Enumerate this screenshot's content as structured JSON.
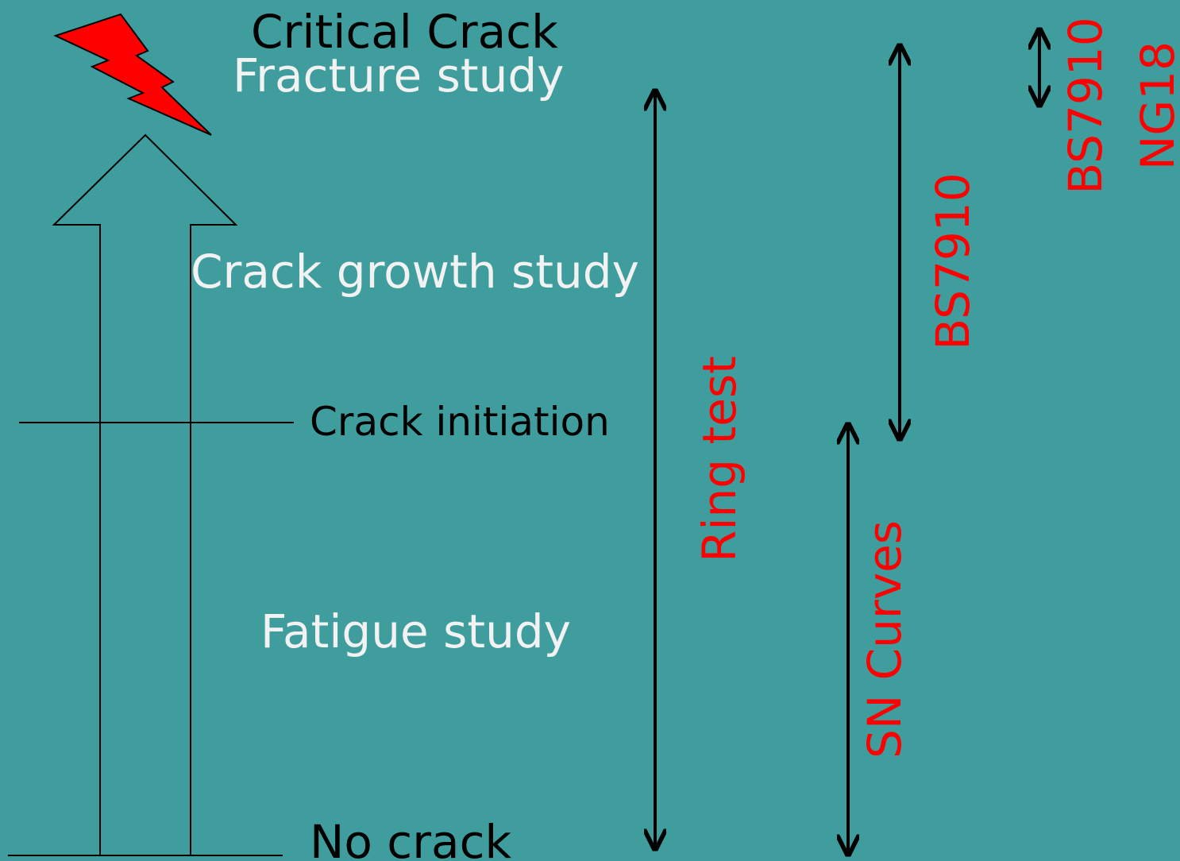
{
  "stages": {
    "critical": "Critical Crack",
    "fracture": "Fracture study",
    "growth": "Crack growth study",
    "initiation": "Crack initiation",
    "fatigue": "Fatigue study",
    "none": "No crack"
  },
  "methods": {
    "ring_test": "Ring test",
    "sn_curves": "SN Curves",
    "bs7910_growth": "BS7910",
    "bs7910_fracture": "BS7910",
    "ng18": "NG18"
  }
}
